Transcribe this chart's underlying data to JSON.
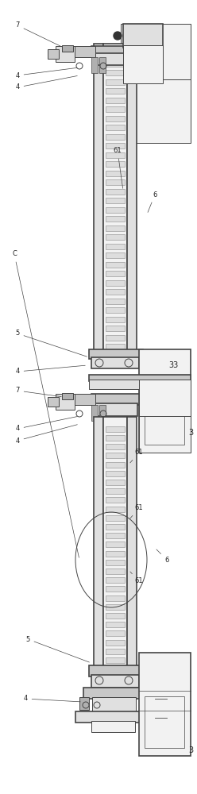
{
  "bg_color": "#ffffff",
  "lc": "#444444",
  "lc_light": "#888888",
  "fc_light": "#f2f2f2",
  "fc_mid": "#e0e0e0",
  "fc_dark": "#c8c8c8",
  "fc_darker": "#b0b0b0",
  "lw": 0.7,
  "tlw": 1.2,
  "fig_width": 2.48,
  "fig_height": 10.0,
  "dpi": 100
}
